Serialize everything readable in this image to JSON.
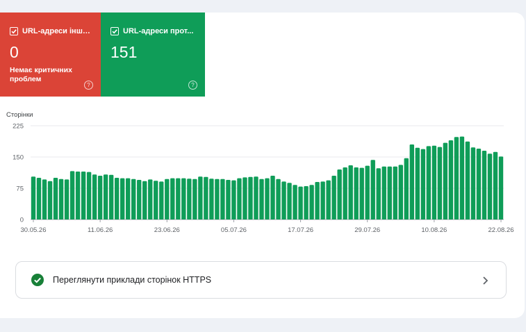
{
  "tiles": [
    {
      "title": "URL-адреси інші...",
      "value": "0",
      "subtitle": "Немає критичних проблем",
      "color": "#db4437"
    },
    {
      "title": "URL-адреси прот...",
      "value": "151",
      "subtitle": "",
      "color": "#0f9d58"
    }
  ],
  "help_glyph": "?",
  "chart_data": {
    "type": "bar",
    "ylabel": "Сторінки",
    "ylim": [
      0,
      225
    ],
    "yticks": [
      0,
      75,
      150,
      225
    ],
    "grid": true,
    "bar_color": "#0f9d58",
    "x_tick_labels": [
      "30.05.26",
      "11.06.26",
      "23.06.26",
      "05.07.26",
      "17.07.26",
      "29.07.26",
      "10.08.26",
      "22.08.26"
    ],
    "values": [
      103,
      100,
      96,
      92,
      100,
      97,
      96,
      116,
      115,
      115,
      114,
      108,
      105,
      108,
      107,
      100,
      99,
      99,
      97,
      95,
      92,
      96,
      93,
      91,
      97,
      99,
      99,
      99,
      98,
      97,
      103,
      102,
      98,
      97,
      97,
      95,
      94,
      99,
      101,
      102,
      103,
      97,
      99,
      105,
      97,
      91,
      88,
      83,
      79,
      80,
      83,
      90,
      91,
      94,
      105,
      120,
      125,
      130,
      125,
      124,
      129,
      143,
      123,
      127,
      127,
      127,
      131,
      147,
      180,
      172,
      169,
      176,
      177,
      174,
      184,
      190,
      198,
      199,
      187,
      173,
      170,
      165,
      158,
      162,
      151
    ]
  },
  "https_examples": {
    "label": "Переглянути приклади сторінок HTTPS",
    "status_color": "#188038"
  }
}
